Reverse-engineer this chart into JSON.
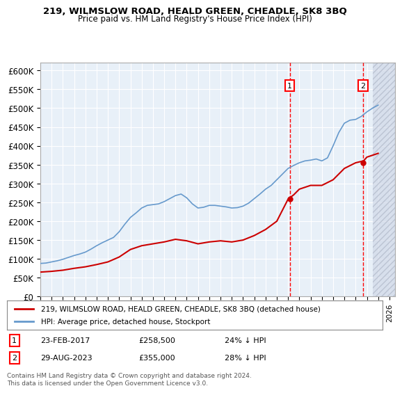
{
  "title": "219, WILMSLOW ROAD, HEALD GREEN, CHEADLE, SK8 3BQ",
  "subtitle": "Price paid vs. HM Land Registry's House Price Index (HPI)",
  "ylabel_ticks": [
    "£0",
    "£50K",
    "£100K",
    "£150K",
    "£200K",
    "£250K",
    "£300K",
    "£350K",
    "£400K",
    "£450K",
    "£500K",
    "£550K",
    "£600K"
  ],
  "ytick_vals": [
    0,
    50000,
    100000,
    150000,
    200000,
    250000,
    300000,
    350000,
    400000,
    450000,
    500000,
    550000,
    600000
  ],
  "ylim": [
    0,
    620000
  ],
  "hpi_color": "#6699CC",
  "price_color": "#CC0000",
  "bg_color": "#E8F0F8",
  "sale1_date": "23-FEB-2017",
  "sale1_price": 258500,
  "sale1_label": "24% ↓ HPI",
  "sale2_date": "29-AUG-2023",
  "sale2_price": 355000,
  "sale2_label": "28% ↓ HPI",
  "legend_line1": "219, WILMSLOW ROAD, HEALD GREEN, CHEADLE, SK8 3BQ (detached house)",
  "legend_line2": "HPI: Average price, detached house, Stockport",
  "footnote": "Contains HM Land Registry data © Crown copyright and database right 2024.\nThis data is licensed under the Open Government Licence v3.0.",
  "hatch_color": "#C0C8D8",
  "xlim_start": 1995.0,
  "xlim_end": 2026.5
}
